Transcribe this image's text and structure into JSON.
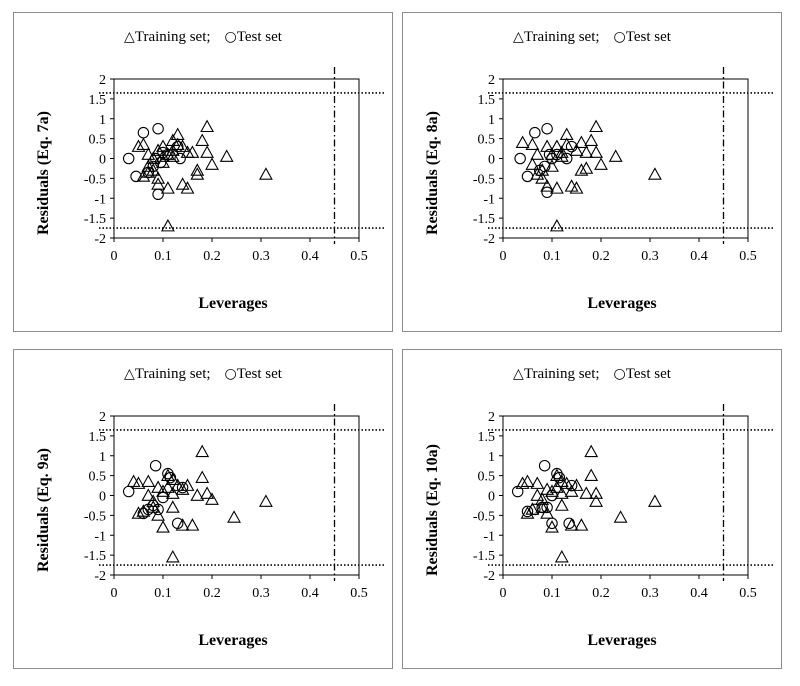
{
  "legend": {
    "training": "Training set;",
    "test": "Test set"
  },
  "chart_data": [
    {
      "type": "scatter",
      "xlabel": "Leverages",
      "ylabel": "Residuals (Eq. 7a)",
      "xlim": [
        0,
        0.5
      ],
      "ylim": [
        -2,
        2
      ],
      "x_ticks": [
        "0",
        "0.1",
        "0.2",
        "0.3",
        "0.4",
        "0.5"
      ],
      "y_ticks": [
        "2",
        "1.5",
        "1",
        "0.5",
        "0",
        "-0.5",
        "-1",
        "-1.5",
        "-2"
      ],
      "reference_lines": {
        "leverage_threshold": 0.45,
        "residual_upper": 1.65,
        "residual_lower": -1.75
      },
      "series": [
        {
          "name": "Training set",
          "marker": "triangle",
          "points": [
            [
              0.05,
              0.3
            ],
            [
              0.06,
              0.35
            ],
            [
              0.07,
              0.1
            ],
            [
              0.07,
              -0.2
            ],
            [
              0.08,
              -0.3
            ],
            [
              0.08,
              0.0
            ],
            [
              0.09,
              0.2
            ],
            [
              0.09,
              -0.5
            ],
            [
              0.1,
              0.3
            ],
            [
              0.1,
              0.05
            ],
            [
              0.1,
              -0.1
            ],
            [
              0.11,
              0.1
            ],
            [
              0.11,
              -0.75
            ],
            [
              0.12,
              0.2
            ],
            [
              0.12,
              0.45
            ],
            [
              0.13,
              0.6
            ],
            [
              0.13,
              0.35
            ],
            [
              0.14,
              -0.65
            ],
            [
              0.15,
              0.15
            ],
            [
              0.15,
              -0.75
            ],
            [
              0.16,
              0.15
            ],
            [
              0.17,
              -0.3
            ],
            [
              0.17,
              -0.4
            ],
            [
              0.18,
              0.45
            ],
            [
              0.19,
              0.8
            ],
            [
              0.19,
              0.15
            ],
            [
              0.2,
              -0.15
            ],
            [
              0.23,
              0.05
            ],
            [
              0.31,
              -0.4
            ],
            [
              0.11,
              -1.7
            ],
            [
              0.07,
              -0.35
            ],
            [
              0.09,
              -0.65
            ],
            [
              0.06,
              -0.45
            ],
            [
              0.12,
              0.05
            ],
            [
              0.14,
              0.3
            ]
          ]
        },
        {
          "name": "Test set",
          "marker": "circle",
          "points": [
            [
              0.03,
              0.0
            ],
            [
              0.045,
              -0.45
            ],
            [
              0.06,
              0.65
            ],
            [
              0.07,
              -0.35
            ],
            [
              0.08,
              -0.2
            ],
            [
              0.085,
              0.0
            ],
            [
              0.09,
              0.75
            ],
            [
              0.09,
              -0.9
            ],
            [
              0.095,
              -0.1
            ],
            [
              0.1,
              0.15
            ],
            [
              0.11,
              0.1
            ],
            [
              0.13,
              0.3
            ],
            [
              0.135,
              0.0
            ]
          ]
        }
      ]
    },
    {
      "type": "scatter",
      "xlabel": "Leverages",
      "ylabel": "Residuals (Eq. 8a)",
      "xlim": [
        0,
        0.5
      ],
      "ylim": [
        -2,
        2
      ],
      "x_ticks": [
        "0",
        "0.1",
        "0.2",
        "0.3",
        "0.4",
        "0.5"
      ],
      "y_ticks": [
        "2",
        "1.5",
        "1",
        "0.5",
        "0",
        "-0.5",
        "-1",
        "-1.5",
        "-2"
      ],
      "reference_lines": {
        "leverage_threshold": 0.45,
        "residual_upper": 1.65,
        "residual_lower": -1.75
      },
      "series": [
        {
          "name": "Training set",
          "marker": "triangle",
          "points": [
            [
              0.04,
              0.4
            ],
            [
              0.06,
              0.35
            ],
            [
              0.06,
              -0.15
            ],
            [
              0.07,
              0.1
            ],
            [
              0.08,
              -0.3
            ],
            [
              0.08,
              -0.5
            ],
            [
              0.09,
              0.3
            ],
            [
              0.09,
              -0.7
            ],
            [
              0.1,
              0.1
            ],
            [
              0.1,
              -0.2
            ],
            [
              0.11,
              0.3
            ],
            [
              0.11,
              -0.75
            ],
            [
              0.12,
              0.15
            ],
            [
              0.13,
              0.6
            ],
            [
              0.13,
              0.35
            ],
            [
              0.14,
              -0.7
            ],
            [
              0.15,
              0.2
            ],
            [
              0.15,
              -0.75
            ],
            [
              0.16,
              0.4
            ],
            [
              0.17,
              0.15
            ],
            [
              0.17,
              -0.25
            ],
            [
              0.18,
              0.45
            ],
            [
              0.19,
              0.8
            ],
            [
              0.19,
              0.15
            ],
            [
              0.2,
              -0.15
            ],
            [
              0.23,
              0.05
            ],
            [
              0.31,
              -0.4
            ],
            [
              0.11,
              -1.7
            ],
            [
              0.07,
              -0.4
            ],
            [
              0.16,
              -0.3
            ],
            [
              0.12,
              0.05
            ]
          ]
        },
        {
          "name": "Test set",
          "marker": "circle",
          "points": [
            [
              0.035,
              0.0
            ],
            [
              0.05,
              -0.45
            ],
            [
              0.065,
              0.65
            ],
            [
              0.075,
              -0.3
            ],
            [
              0.085,
              -0.2
            ],
            [
              0.09,
              0.75
            ],
            [
              0.09,
              -0.85
            ],
            [
              0.1,
              0.0
            ],
            [
              0.11,
              0.1
            ],
            [
              0.13,
              0.0
            ],
            [
              0.14,
              0.3
            ],
            [
              0.095,
              0.1
            ]
          ]
        }
      ]
    },
    {
      "type": "scatter",
      "xlabel": "Leverages",
      "ylabel": "Residuals (Eq. 9a)",
      "xlim": [
        0,
        0.5
      ],
      "ylim": [
        -2,
        2
      ],
      "x_ticks": [
        "0",
        "0.1",
        "0.2",
        "0.3",
        "0.4",
        "0.5"
      ],
      "y_ticks": [
        "2",
        "1.5",
        "1",
        "0.5",
        "0",
        "-0.5",
        "-1",
        "-1.5",
        "-2"
      ],
      "reference_lines": {
        "leverage_threshold": 0.45,
        "residual_upper": 1.65,
        "residual_lower": -1.75
      },
      "series": [
        {
          "name": "Training set",
          "marker": "triangle",
          "points": [
            [
              0.04,
              0.35
            ],
            [
              0.05,
              0.3
            ],
            [
              0.05,
              -0.45
            ],
            [
              0.06,
              -0.4
            ],
            [
              0.07,
              0.35
            ],
            [
              0.07,
              0.0
            ],
            [
              0.08,
              -0.3
            ],
            [
              0.09,
              0.2
            ],
            [
              0.09,
              -0.5
            ],
            [
              0.1,
              0.1
            ],
            [
              0.1,
              -0.8
            ],
            [
              0.11,
              0.5
            ],
            [
              0.11,
              0.2
            ],
            [
              0.12,
              0.4
            ],
            [
              0.12,
              0.05
            ],
            [
              0.12,
              -0.3
            ],
            [
              0.13,
              0.25
            ],
            [
              0.14,
              -0.75
            ],
            [
              0.15,
              0.25
            ],
            [
              0.16,
              -0.75
            ],
            [
              0.17,
              0.0
            ],
            [
              0.18,
              0.45
            ],
            [
              0.18,
              1.1
            ],
            [
              0.19,
              0.05
            ],
            [
              0.2,
              -0.1
            ],
            [
              0.245,
              -0.55
            ],
            [
              0.31,
              -0.15
            ],
            [
              0.12,
              -1.55
            ],
            [
              0.08,
              -0.15
            ],
            [
              0.14,
              0.15
            ]
          ]
        },
        {
          "name": "Test set",
          "marker": "circle",
          "points": [
            [
              0.03,
              0.1
            ],
            [
              0.06,
              -0.45
            ],
            [
              0.07,
              -0.35
            ],
            [
              0.08,
              -0.25
            ],
            [
              0.085,
              0.75
            ],
            [
              0.09,
              -0.35
            ],
            [
              0.1,
              -0.05
            ],
            [
              0.11,
              0.55
            ],
            [
              0.115,
              0.45
            ],
            [
              0.13,
              -0.7
            ],
            [
              0.14,
              0.2
            ]
          ]
        }
      ]
    },
    {
      "type": "scatter",
      "xlabel": "Leverages",
      "ylabel": "Residuals (Eq. 10a)",
      "xlim": [
        0,
        0.5
      ],
      "ylim": [
        -2,
        2
      ],
      "x_ticks": [
        "0",
        "0.1",
        "0.2",
        "0.3",
        "0.4",
        "0.5"
      ],
      "y_ticks": [
        "2",
        "1.5",
        "1",
        "0.5",
        "0",
        "-0.5",
        "-1",
        "-1.5",
        "-2"
      ],
      "reference_lines": {
        "leverage_threshold": 0.45,
        "residual_upper": 1.65,
        "residual_lower": -1.75
      },
      "series": [
        {
          "name": "Training set",
          "marker": "triangle",
          "points": [
            [
              0.04,
              0.3
            ],
            [
              0.05,
              0.35
            ],
            [
              0.05,
              -0.45
            ],
            [
              0.06,
              -0.35
            ],
            [
              0.07,
              0.3
            ],
            [
              0.07,
              0.0
            ],
            [
              0.08,
              -0.3
            ],
            [
              0.09,
              0.15
            ],
            [
              0.09,
              -0.45
            ],
            [
              0.1,
              0.1
            ],
            [
              0.1,
              -0.8
            ],
            [
              0.11,
              0.5
            ],
            [
              0.11,
              0.2
            ],
            [
              0.12,
              0.35
            ],
            [
              0.12,
              0.05
            ],
            [
              0.12,
              -0.25
            ],
            [
              0.13,
              0.3
            ],
            [
              0.14,
              -0.75
            ],
            [
              0.15,
              0.25
            ],
            [
              0.16,
              -0.75
            ],
            [
              0.17,
              0.05
            ],
            [
              0.18,
              0.5
            ],
            [
              0.18,
              1.1
            ],
            [
              0.19,
              0.05
            ],
            [
              0.19,
              -0.15
            ],
            [
              0.24,
              -0.55
            ],
            [
              0.31,
              -0.15
            ],
            [
              0.12,
              -1.55
            ],
            [
              0.08,
              -0.1
            ],
            [
              0.14,
              0.1
            ]
          ]
        },
        {
          "name": "Test set",
          "marker": "circle",
          "points": [
            [
              0.03,
              0.1
            ],
            [
              0.05,
              -0.4
            ],
            [
              0.065,
              -0.35
            ],
            [
              0.08,
              -0.3
            ],
            [
              0.085,
              0.75
            ],
            [
              0.09,
              -0.3
            ],
            [
              0.1,
              0.0
            ],
            [
              0.11,
              0.55
            ],
            [
              0.115,
              0.45
            ],
            [
              0.135,
              -0.7
            ],
            [
              0.14,
              0.25
            ],
            [
              0.1,
              -0.7
            ]
          ]
        }
      ]
    }
  ]
}
